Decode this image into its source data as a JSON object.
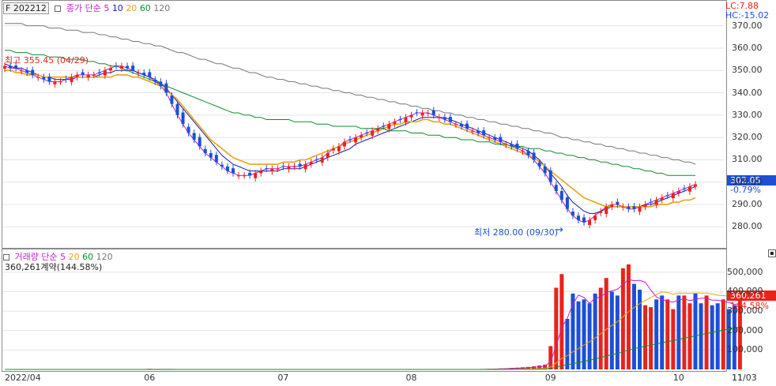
{
  "price_legend": {
    "symbol": "F 202212",
    "label": "종가 단순",
    "p5": "5",
    "p10": "10",
    "p20": "20",
    "p60": "60",
    "p120": "120"
  },
  "volume_legend": {
    "label": "거래량 단순",
    "p5": "5",
    "p20": "20",
    "p60": "60",
    "p120": "120",
    "detail": "360,261계약(144.58%)"
  },
  "corner": {
    "lc": "LC:7.88",
    "hc": "HC:-15.02"
  },
  "price_tag": {
    "value": "302.05",
    "change": "-0.79%"
  },
  "volume_tag": {
    "value": "360,261",
    "pct": "144.58%"
  },
  "annotations": {
    "high": "최고 355.45 (04/29)",
    "low": "최저 280.00 (09/30)"
  },
  "colors": {
    "up": "#e8231b",
    "down": "#1c4fd6",
    "ma5": "#c21ec9",
    "ma10": "#1a1aa3",
    "ma20": "#e8a317",
    "ma60": "#118a2b",
    "ma120": "#777777"
  },
  "chart_data": [
    {
      "type": "candlestick",
      "title": "F 202212",
      "ylim": [
        272,
        378
      ],
      "yticks": [
        "370.00",
        "360.00",
        "350.00",
        "340.00",
        "330.00",
        "320.00",
        "310.00",
        "300.00",
        "290.00",
        "280.00"
      ],
      "ytick_values": [
        370,
        360,
        350,
        340,
        330,
        320,
        310,
        300,
        290,
        280
      ],
      "xlabels": [
        "2022/04",
        "06",
        "07",
        "08",
        "09",
        "10",
        "11",
        "11/03"
      ],
      "xlabel_index": [
        0,
        25,
        49,
        72,
        97,
        120,
        143,
        153
      ],
      "series": [
        {
          "name": "5",
          "values": [
            352,
            351,
            351,
            350,
            349,
            348,
            347,
            346,
            345,
            345,
            345,
            346,
            347,
            348,
            348,
            348,
            348,
            349,
            350,
            351,
            352,
            352,
            351,
            350,
            349,
            348,
            347,
            345,
            343,
            340,
            335,
            330,
            326,
            322,
            319,
            316,
            313,
            311,
            309,
            307,
            305,
            304,
            303,
            303,
            303,
            304,
            305,
            306,
            306,
            306,
            307,
            307,
            307,
            307,
            308,
            309,
            310,
            311,
            313,
            315,
            316,
            318,
            319,
            320,
            321,
            322,
            323,
            324,
            325,
            326,
            327,
            328,
            329,
            330,
            331,
            331,
            331,
            330,
            329,
            328,
            327,
            326,
            325,
            324,
            323,
            322,
            321,
            320,
            319,
            318,
            317,
            316,
            315,
            314,
            312,
            310,
            307,
            304,
            300,
            296,
            292,
            288,
            285,
            283,
            282,
            283,
            285,
            287,
            289,
            290,
            290,
            289,
            288,
            288,
            289,
            290,
            291,
            292,
            293,
            294,
            295,
            296,
            297,
            298,
            299
          ]
        },
        {
          "name": "10",
          "values": [
            353,
            352,
            351,
            351,
            350,
            349,
            348,
            347,
            347,
            346,
            346,
            346,
            346,
            347,
            347,
            347,
            347,
            348,
            349,
            349,
            350,
            350,
            350,
            350,
            349,
            348,
            347,
            346,
            344,
            342,
            339,
            336,
            333,
            330,
            327,
            324,
            321,
            318,
            315,
            312,
            310,
            308,
            307,
            306,
            305,
            305,
            305,
            305,
            305,
            305,
            306,
            306,
            306,
            306,
            307,
            308,
            309,
            310,
            311,
            312,
            313,
            314,
            315,
            317,
            318,
            319,
            320,
            321,
            322,
            323,
            324,
            325,
            326,
            327,
            328,
            329,
            329,
            329,
            329,
            329,
            328,
            327,
            326,
            325,
            324,
            323,
            322,
            321,
            320,
            319,
            318,
            317,
            316,
            315,
            314,
            312,
            310,
            307,
            304,
            301,
            298,
            294,
            291,
            289,
            287,
            286,
            286,
            287,
            288,
            289,
            289,
            289,
            289,
            289,
            289,
            290,
            290,
            291,
            292,
            293,
            294,
            295,
            296,
            297,
            298
          ]
        },
        {
          "name": "20",
          "values": [
            350,
            350,
            349,
            349,
            348,
            348,
            348,
            347,
            347,
            347,
            347,
            347,
            347,
            347,
            347,
            347,
            347,
            347,
            347,
            347,
            348,
            348,
            348,
            347,
            347,
            346,
            345,
            344,
            343,
            341,
            339,
            337,
            334,
            331,
            328,
            325,
            322,
            319,
            317,
            315,
            313,
            311,
            310,
            309,
            308,
            308,
            308,
            308,
            308,
            308,
            309,
            309,
            309,
            310,
            310,
            311,
            312,
            313,
            314,
            315,
            316,
            317,
            318,
            319,
            320,
            321,
            322,
            323,
            324,
            325,
            326,
            326,
            327,
            327,
            327,
            328,
            328,
            327,
            327,
            326,
            326,
            325,
            324,
            323,
            322,
            321,
            320,
            319,
            318,
            317,
            316,
            315,
            314,
            313,
            312,
            311,
            309,
            307,
            305,
            303,
            301,
            299,
            297,
            295,
            293,
            292,
            291,
            290,
            289,
            289,
            289,
            289,
            289,
            289,
            289,
            289,
            289,
            290,
            290,
            290,
            291,
            291,
            292,
            292,
            293
          ]
        },
        {
          "name": "60",
          "values": [
            359,
            359,
            358,
            358,
            358,
            357,
            357,
            357,
            356,
            356,
            356,
            355,
            355,
            355,
            355,
            354,
            354,
            353,
            353,
            352,
            352,
            351,
            350,
            349,
            348,
            347,
            346,
            345,
            344,
            343,
            342,
            341,
            340,
            339,
            338,
            337,
            336,
            335,
            334,
            333,
            332,
            331,
            331,
            330,
            330,
            329,
            329,
            328,
            328,
            328,
            328,
            328,
            327,
            327,
            327,
            327,
            326,
            326,
            326,
            325,
            325,
            325,
            325,
            325,
            324,
            324,
            324,
            324,
            324,
            323,
            323,
            323,
            323,
            322,
            322,
            322,
            321,
            321,
            321,
            320,
            320,
            320,
            319,
            319,
            319,
            318,
            318,
            318,
            317,
            317,
            317,
            316,
            316,
            316,
            315,
            315,
            315,
            314,
            314,
            313,
            313,
            312,
            312,
            311,
            311,
            310,
            310,
            309,
            309,
            308,
            308,
            307,
            307,
            306,
            306,
            305,
            305,
            304,
            304,
            303,
            303,
            303,
            303,
            303,
            303
          ]
        },
        {
          "name": "120",
          "values": [
            371,
            371,
            371,
            371,
            370,
            370,
            370,
            370,
            369,
            369,
            369,
            368,
            368,
            368,
            367,
            367,
            367,
            366,
            366,
            365,
            365,
            364,
            364,
            363,
            363,
            362,
            362,
            361,
            361,
            360,
            359,
            358,
            358,
            357,
            356,
            355,
            355,
            354,
            353,
            353,
            352,
            351,
            351,
            350,
            349,
            349,
            348,
            347,
            347,
            346,
            346,
            345,
            345,
            344,
            344,
            343,
            343,
            342,
            342,
            341,
            341,
            340,
            340,
            339,
            339,
            338,
            338,
            337,
            337,
            336,
            336,
            335,
            335,
            334,
            334,
            333,
            333,
            332,
            332,
            331,
            331,
            330,
            330,
            329,
            329,
            328,
            328,
            327,
            327,
            326,
            326,
            325,
            325,
            324,
            324,
            323,
            323,
            322,
            322,
            321,
            320,
            320,
            319,
            319,
            318,
            318,
            317,
            317,
            316,
            316,
            315,
            315,
            314,
            314,
            313,
            313,
            312,
            312,
            311,
            311,
            310,
            310,
            309,
            309,
            308
          ]
        }
      ]
    },
    {
      "type": "bar",
      "title": "거래량",
      "ylim": [
        0,
        560000
      ],
      "yticks": [
        "500,000",
        "400,000",
        "300,000",
        "200,000",
        "100,000"
      ],
      "ytick_values": [
        500000,
        400000,
        300000,
        200000,
        100000
      ],
      "values": [
        0,
        0,
        0,
        0,
        0,
        0,
        0,
        0,
        0,
        0,
        0,
        0,
        0,
        0,
        0,
        0,
        0,
        0,
        0,
        0,
        0,
        0,
        0,
        0,
        0,
        0,
        3000,
        0,
        0,
        0,
        0,
        0,
        0,
        0,
        0,
        0,
        0,
        0,
        0,
        0,
        0,
        0,
        0,
        0,
        0,
        0,
        0,
        0,
        0,
        0,
        0,
        0,
        0,
        0,
        0,
        0,
        0,
        0,
        0,
        0,
        0,
        0,
        0,
        0,
        0,
        0,
        0,
        0,
        0,
        0,
        0,
        0,
        0,
        0,
        0,
        0,
        0,
        0,
        0,
        0,
        0,
        0,
        0,
        0,
        0,
        0,
        2000,
        3000,
        4000,
        5000,
        6000,
        8000,
        9000,
        11000,
        13000,
        16000,
        20000,
        25000,
        120000,
        420000,
        490000,
        260000,
        390000,
        350000,
        360000,
        340000,
        390000,
        420000,
        470000,
        400000,
        380000,
        520000,
        540000,
        440000,
        410000,
        330000,
        320000,
        360000,
        380000,
        360000,
        310000,
        380000,
        380000,
        340000,
        390000,
        340000,
        380000,
        330000,
        340000,
        360000,
        310000,
        330000,
        360261
      ],
      "up": [
        0,
        0,
        0,
        0,
        0,
        0,
        0,
        0,
        0,
        0,
        0,
        0,
        0,
        0,
        0,
        0,
        0,
        0,
        0,
        0,
        0,
        0,
        0,
        0,
        0,
        0,
        1,
        0,
        0,
        0,
        0,
        0,
        0,
        0,
        0,
        0,
        0,
        0,
        0,
        0,
        0,
        0,
        0,
        0,
        0,
        0,
        0,
        0,
        0,
        0,
        0,
        0,
        0,
        0,
        0,
        0,
        0,
        0,
        0,
        0,
        0,
        0,
        0,
        0,
        0,
        0,
        0,
        0,
        0,
        0,
        0,
        0,
        0,
        0,
        0,
        0,
        0,
        0,
        0,
        0,
        0,
        0,
        0,
        0,
        0,
        0,
        1,
        1,
        1,
        1,
        1,
        1,
        1,
        1,
        1,
        1,
        1,
        1,
        1,
        1,
        1,
        0,
        0,
        0,
        0,
        0,
        0,
        1,
        1,
        0,
        0,
        1,
        1,
        0,
        0,
        1,
        1,
        0,
        0,
        1,
        1,
        0,
        1,
        1,
        0,
        0,
        1,
        0,
        0,
        1,
        0,
        0,
        1
      ]
    }
  ]
}
